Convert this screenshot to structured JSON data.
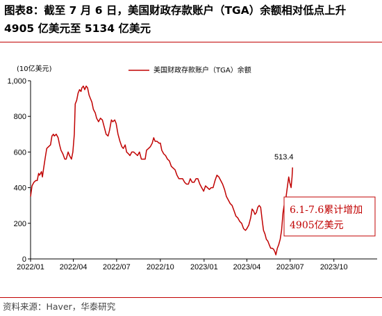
{
  "header": {
    "title_line1": "图表8：截至 7 月 6 日，美国财政存款账户（TGA）余额相对低点上升",
    "title_line2": "4905 亿美元至 5134 亿美元"
  },
  "footer": {
    "source": "资料来源：Haver，华泰研究"
  },
  "colors": {
    "line": "#c00000",
    "axis": "#000000",
    "rule": "#c00000",
    "callout_border": "#c00000"
  },
  "chart_data": {
    "type": "line",
    "unit_label": "(10亿美元)",
    "ylim": [
      0,
      1000
    ],
    "yticks": [
      0,
      200,
      400,
      600,
      800,
      1000
    ],
    "ytick_labels": [
      "0",
      "200",
      "400",
      "600",
      "800",
      "1,000"
    ],
    "xticks": [
      "2022-01-01",
      "2022-04-01",
      "2022-07-01",
      "2022-10-01",
      "2023-01-01",
      "2023-04-01",
      "2023-07-01",
      "2023-10-01"
    ],
    "xtick_labels": [
      "2022/01",
      "2022/04",
      "2022/07",
      "2022/10",
      "2023/01",
      "2023/04",
      "2023/07",
      "2023/10"
    ],
    "xlim": [
      "2022-01-01",
      "2023-12-31"
    ],
    "legend_position": "top",
    "grid": false,
    "end_label": "513.4",
    "annotation": {
      "line1": "6.1-7.6累计增加",
      "line2": "4905亿美元"
    },
    "series": [
      {
        "name": "美国财政存款账户（TGA）余额",
        "points": [
          [
            "2022-01-01",
            350
          ],
          [
            "2022-01-04",
            410
          ],
          [
            "2022-01-08",
            430
          ],
          [
            "2022-01-12",
            440
          ],
          [
            "2022-01-15",
            440
          ],
          [
            "2022-01-18",
            480
          ],
          [
            "2022-01-20",
            470
          ],
          [
            "2022-01-24",
            490
          ],
          [
            "2022-01-26",
            460
          ],
          [
            "2022-01-28",
            500
          ],
          [
            "2022-02-01",
            570
          ],
          [
            "2022-02-04",
            620
          ],
          [
            "2022-02-08",
            630
          ],
          [
            "2022-02-12",
            640
          ],
          [
            "2022-02-15",
            690
          ],
          [
            "2022-02-18",
            700
          ],
          [
            "2022-02-20",
            690
          ],
          [
            "2022-02-24",
            700
          ],
          [
            "2022-02-28",
            680
          ],
          [
            "2022-03-03",
            640
          ],
          [
            "2022-03-06",
            610
          ],
          [
            "2022-03-10",
            590
          ],
          [
            "2022-03-14",
            560
          ],
          [
            "2022-03-17",
            560
          ],
          [
            "2022-03-21",
            600
          ],
          [
            "2022-03-24",
            580
          ],
          [
            "2022-03-28",
            560
          ],
          [
            "2022-03-31",
            600
          ],
          [
            "2022-04-03",
            700
          ],
          [
            "2022-04-05",
            870
          ],
          [
            "2022-04-08",
            890
          ],
          [
            "2022-04-11",
            930
          ],
          [
            "2022-04-14",
            950
          ],
          [
            "2022-04-17",
            940
          ],
          [
            "2022-04-19",
            960
          ],
          [
            "2022-04-22",
            970
          ],
          [
            "2022-04-25",
            950
          ],
          [
            "2022-04-28",
            970
          ],
          [
            "2022-05-01",
            960
          ],
          [
            "2022-05-04",
            920
          ],
          [
            "2022-05-07",
            900
          ],
          [
            "2022-05-10",
            880
          ],
          [
            "2022-05-13",
            840
          ],
          [
            "2022-05-17",
            820
          ],
          [
            "2022-05-20",
            790
          ],
          [
            "2022-05-24",
            770
          ],
          [
            "2022-05-28",
            790
          ],
          [
            "2022-06-01",
            780
          ],
          [
            "2022-06-05",
            740
          ],
          [
            "2022-06-09",
            700
          ],
          [
            "2022-06-13",
            690
          ],
          [
            "2022-06-16",
            720
          ],
          [
            "2022-06-20",
            780
          ],
          [
            "2022-06-23",
            770
          ],
          [
            "2022-06-27",
            780
          ],
          [
            "2022-06-30",
            760
          ],
          [
            "2022-07-04",
            700
          ],
          [
            "2022-07-08",
            660
          ],
          [
            "2022-07-12",
            630
          ],
          [
            "2022-07-15",
            620
          ],
          [
            "2022-07-19",
            640
          ],
          [
            "2022-07-22",
            600
          ],
          [
            "2022-07-26",
            590
          ],
          [
            "2022-07-29",
            580
          ],
          [
            "2022-08-02",
            600
          ],
          [
            "2022-08-06",
            600
          ],
          [
            "2022-08-10",
            590
          ],
          [
            "2022-08-14",
            580
          ],
          [
            "2022-08-18",
            600
          ],
          [
            "2022-08-22",
            560
          ],
          [
            "2022-08-26",
            560
          ],
          [
            "2022-08-30",
            560
          ],
          [
            "2022-09-02",
            610
          ],
          [
            "2022-09-06",
            620
          ],
          [
            "2022-09-10",
            630
          ],
          [
            "2022-09-14",
            650
          ],
          [
            "2022-09-17",
            680
          ],
          [
            "2022-09-20",
            660
          ],
          [
            "2022-09-24",
            660
          ],
          [
            "2022-09-28",
            650
          ],
          [
            "2022-10-01",
            650
          ],
          [
            "2022-10-04",
            610
          ],
          [
            "2022-10-08",
            590
          ],
          [
            "2022-10-12",
            580
          ],
          [
            "2022-10-16",
            560
          ],
          [
            "2022-10-20",
            550
          ],
          [
            "2022-10-24",
            520
          ],
          [
            "2022-10-28",
            510
          ],
          [
            "2022-11-01",
            500
          ],
          [
            "2022-11-05",
            470
          ],
          [
            "2022-11-09",
            450
          ],
          [
            "2022-11-13",
            450
          ],
          [
            "2022-11-17",
            450
          ],
          [
            "2022-11-21",
            430
          ],
          [
            "2022-11-25",
            420
          ],
          [
            "2022-11-29",
            420
          ],
          [
            "2022-12-03",
            450
          ],
          [
            "2022-12-07",
            430
          ],
          [
            "2022-12-11",
            430
          ],
          [
            "2022-12-15",
            450
          ],
          [
            "2022-12-19",
            450
          ],
          [
            "2022-12-23",
            420
          ],
          [
            "2022-12-27",
            400
          ],
          [
            "2022-12-31",
            380
          ],
          [
            "2023-01-04",
            410
          ],
          [
            "2023-01-08",
            400
          ],
          [
            "2023-01-12",
            390
          ],
          [
            "2023-01-16",
            400
          ],
          [
            "2023-01-20",
            400
          ],
          [
            "2023-01-24",
            440
          ],
          [
            "2023-01-28",
            470
          ],
          [
            "2023-02-01",
            460
          ],
          [
            "2023-02-05",
            440
          ],
          [
            "2023-02-09",
            420
          ],
          [
            "2023-02-13",
            390
          ],
          [
            "2023-02-17",
            350
          ],
          [
            "2023-02-21",
            330
          ],
          [
            "2023-02-25",
            310
          ],
          [
            "2023-03-01",
            300
          ],
          [
            "2023-03-05",
            270
          ],
          [
            "2023-03-09",
            240
          ],
          [
            "2023-03-13",
            230
          ],
          [
            "2023-03-17",
            210
          ],
          [
            "2023-03-21",
            200
          ],
          [
            "2023-03-25",
            170
          ],
          [
            "2023-03-29",
            160
          ],
          [
            "2023-04-01",
            170
          ],
          [
            "2023-04-05",
            190
          ],
          [
            "2023-04-09",
            230
          ],
          [
            "2023-04-12",
            280
          ],
          [
            "2023-04-15",
            270
          ],
          [
            "2023-04-18",
            250
          ],
          [
            "2023-04-21",
            260
          ],
          [
            "2023-04-24",
            290
          ],
          [
            "2023-04-27",
            300
          ],
          [
            "2023-04-30",
            290
          ],
          [
            "2023-05-03",
            220
          ],
          [
            "2023-05-06",
            160
          ],
          [
            "2023-05-09",
            140
          ],
          [
            "2023-05-12",
            110
          ],
          [
            "2023-05-15",
            100
          ],
          [
            "2023-05-18",
            80
          ],
          [
            "2023-05-21",
            60
          ],
          [
            "2023-05-24",
            60
          ],
          [
            "2023-05-27",
            55
          ],
          [
            "2023-05-30",
            40
          ],
          [
            "2023-06-01",
            23
          ],
          [
            "2023-06-04",
            60
          ],
          [
            "2023-06-07",
            80
          ],
          [
            "2023-06-10",
            110
          ],
          [
            "2023-06-13",
            160
          ],
          [
            "2023-06-16",
            260
          ],
          [
            "2023-06-19",
            310
          ],
          [
            "2023-06-22",
            340
          ],
          [
            "2023-06-25",
            400
          ],
          [
            "2023-06-28",
            460
          ],
          [
            "2023-06-30",
            430
          ],
          [
            "2023-07-03",
            400
          ],
          [
            "2023-07-05",
            460
          ],
          [
            "2023-07-06",
            513.4
          ]
        ]
      }
    ]
  }
}
